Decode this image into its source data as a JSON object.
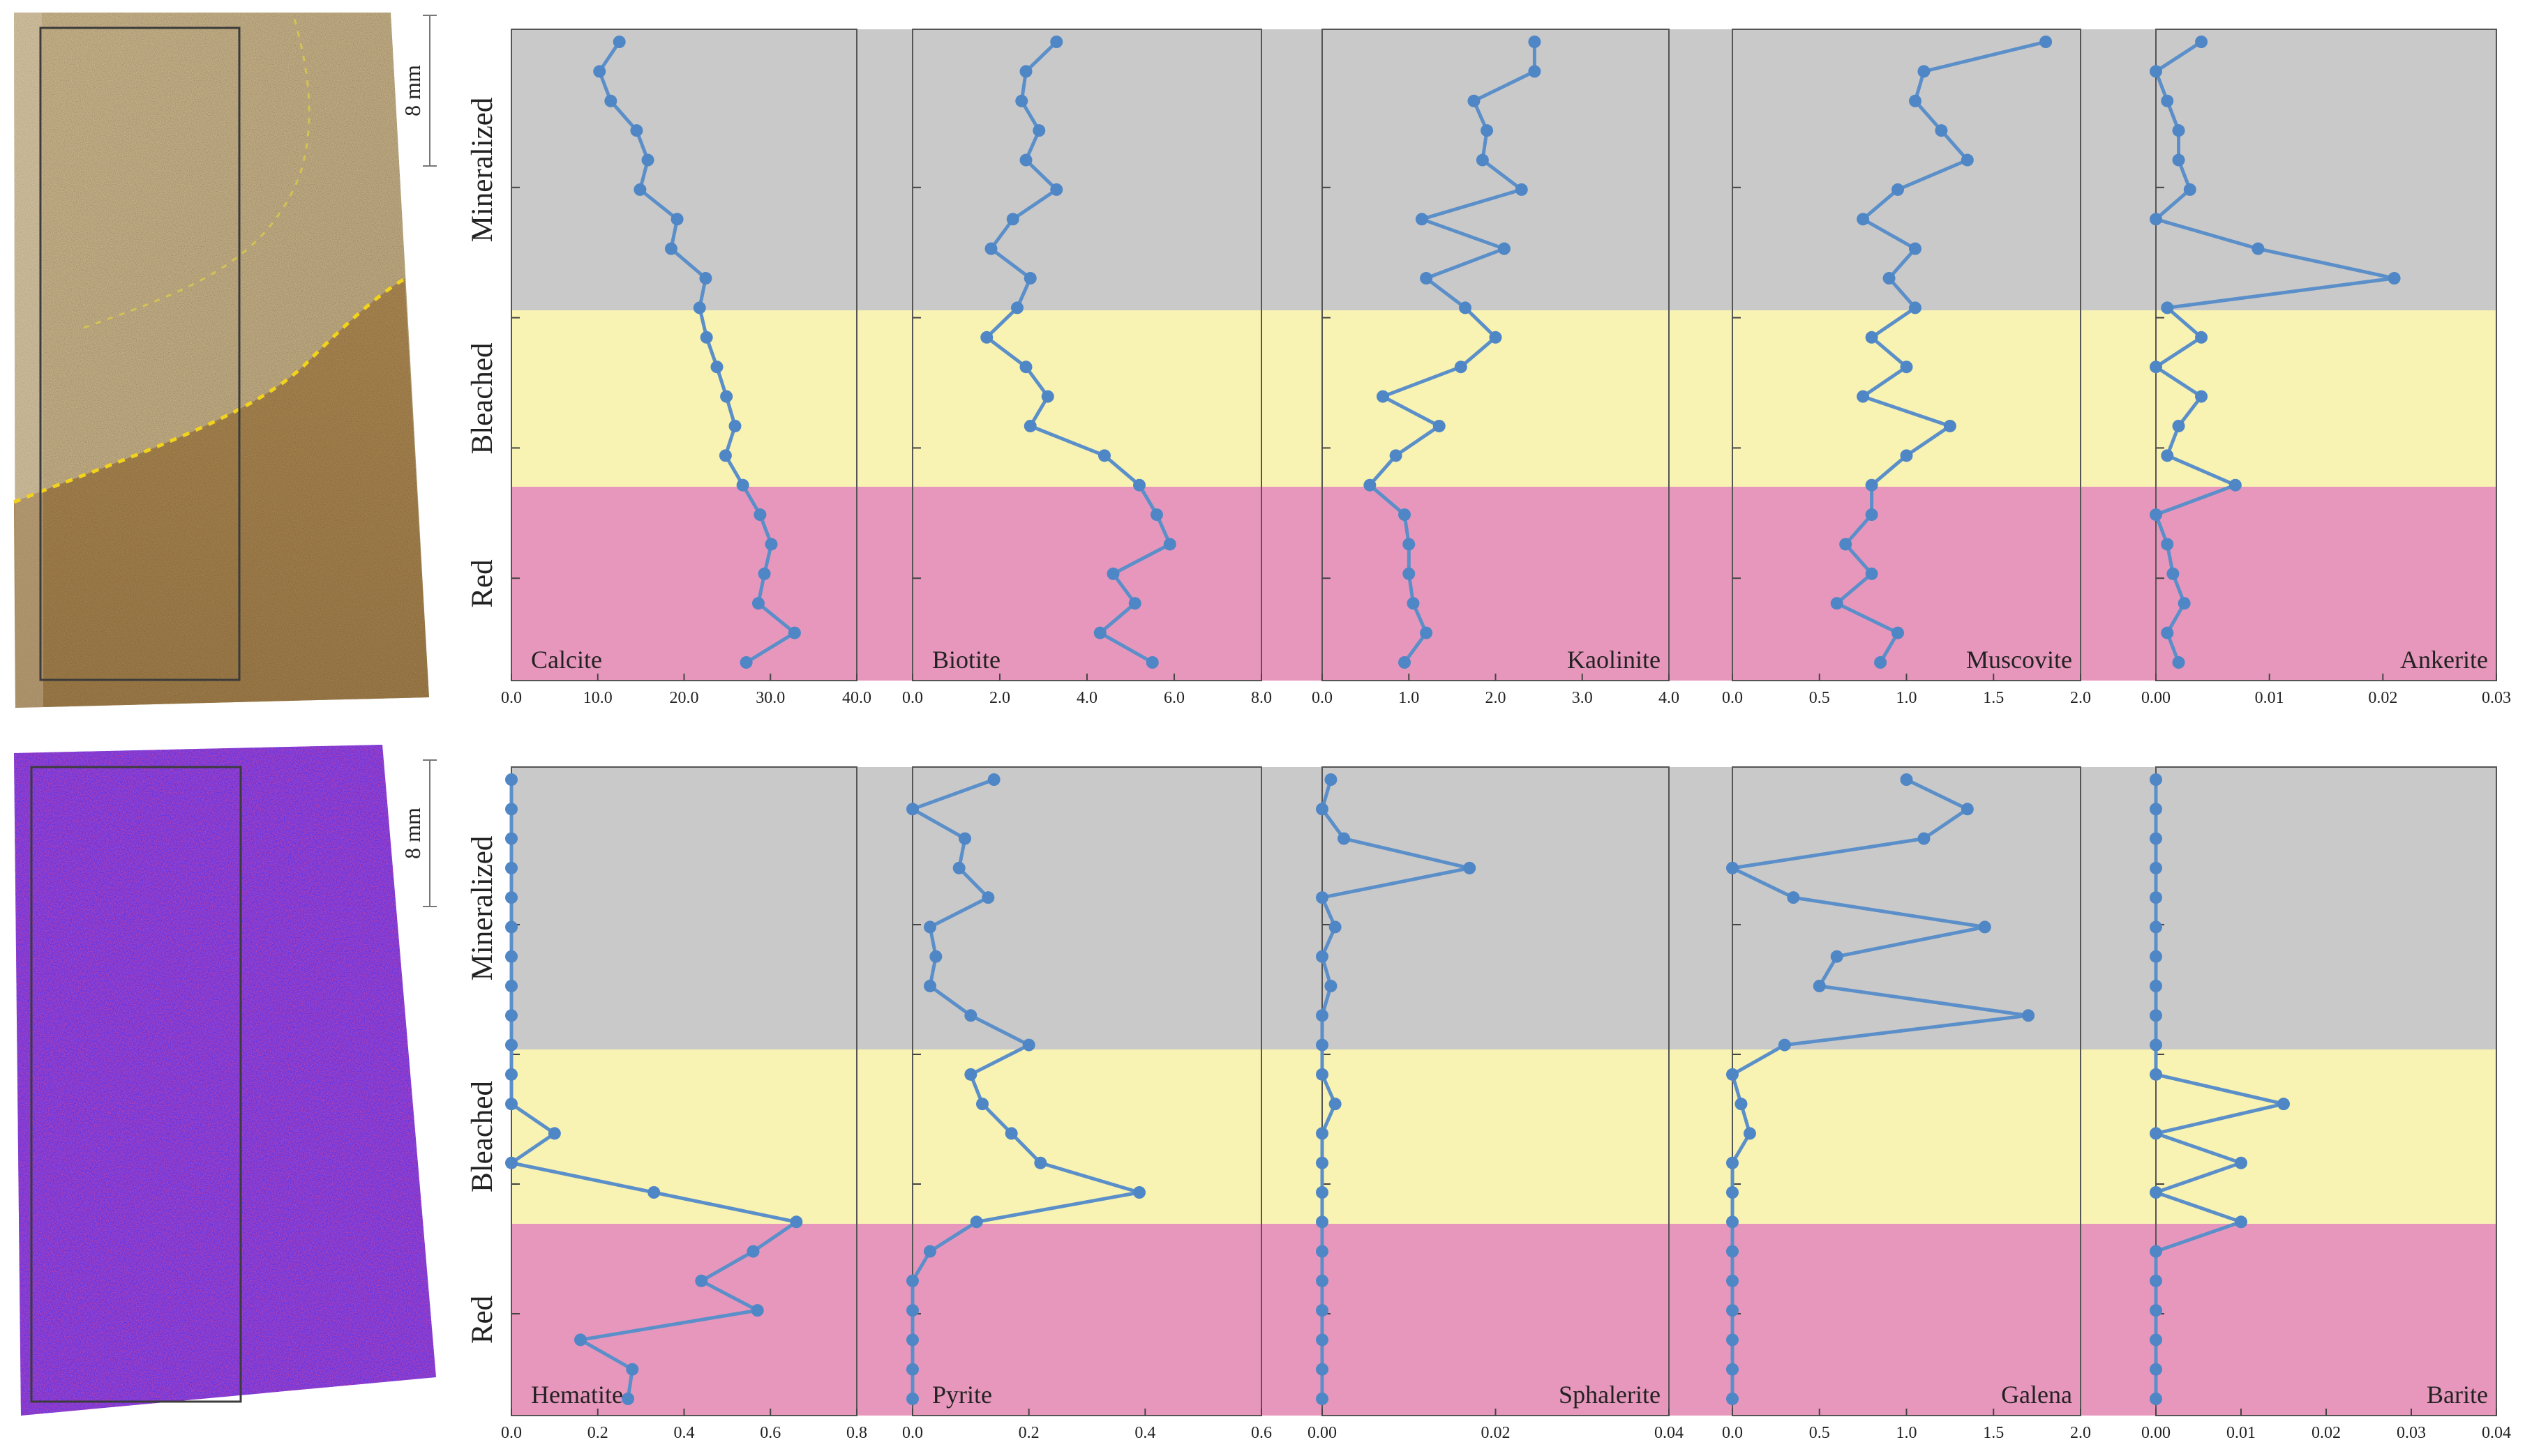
{
  "scale_bar": "8 mm",
  "zones": [
    {
      "label": "Mineralized",
      "color": "#c9c9c9"
    },
    {
      "label": "Bleached",
      "color": "#f8f3b3"
    },
    {
      "label": "Red",
      "color": "#e797bc"
    }
  ],
  "colors": {
    "series": "#5b8fc9",
    "marker": "#4f86c6"
  },
  "chart_data": [
    {
      "type": "line",
      "label": "Calcite",
      "row": 0,
      "xlim": [
        0,
        40
      ],
      "ticks": [
        "0.0",
        "10.0",
        "20.0",
        "30.0",
        "40.0"
      ],
      "depth": [
        0,
        1,
        2,
        3,
        4,
        5,
        6,
        7,
        8,
        9,
        10,
        11,
        12,
        13,
        14,
        15,
        16,
        17,
        18,
        19,
        20,
        21
      ],
      "values": [
        12.5,
        10.2,
        11.5,
        14.5,
        15.8,
        14.9,
        19.2,
        18.5,
        22.5,
        21.8,
        22.6,
        23.8,
        24.9,
        25.9,
        24.8,
        26.8,
        28.8,
        30.1,
        29.3,
        28.6,
        32.8,
        27.2
      ]
    },
    {
      "type": "line",
      "label": "Biotite",
      "row": 0,
      "xlim": [
        0,
        8
      ],
      "ticks": [
        "0.0",
        "2.0",
        "4.0",
        "6.0",
        "8.0"
      ],
      "depth": [
        0,
        1,
        2,
        3,
        4,
        5,
        6,
        7,
        8,
        9,
        10,
        11,
        12,
        13,
        14,
        15,
        16,
        17,
        18,
        19,
        20,
        21
      ],
      "values": [
        3.3,
        2.6,
        2.5,
        2.9,
        2.6,
        3.3,
        2.3,
        1.8,
        2.7,
        2.4,
        1.7,
        2.6,
        3.1,
        2.7,
        4.4,
        5.2,
        5.6,
        5.9,
        4.6,
        5.1,
        4.3,
        5.5
      ]
    },
    {
      "type": "line",
      "label": "Kaolinite",
      "row": 0,
      "xlim": [
        0,
        4
      ],
      "ticks": [
        "0.0",
        "1.0",
        "2.0",
        "3.0",
        "4.0"
      ],
      "depth": [
        0,
        1,
        2,
        3,
        4,
        5,
        6,
        7,
        8,
        9,
        10,
        11,
        12,
        13,
        14,
        15,
        16,
        17,
        18,
        19,
        20,
        21
      ],
      "values": [
        2.45,
        2.45,
        1.75,
        1.9,
        1.85,
        2.3,
        1.15,
        2.1,
        1.2,
        1.65,
        2.0,
        1.6,
        0.7,
        1.35,
        0.85,
        0.55,
        0.95,
        1.0,
        1.0,
        1.05,
        1.2,
        0.95
      ]
    },
    {
      "type": "line",
      "label": "Muscovite",
      "row": 0,
      "xlim": [
        0,
        2
      ],
      "ticks": [
        "0.0",
        "0.5",
        "1.0",
        "1.5",
        "2.0"
      ],
      "depth": [
        0,
        1,
        2,
        3,
        4,
        5,
        6,
        7,
        8,
        9,
        10,
        11,
        12,
        13,
        14,
        15,
        16,
        17,
        18,
        19,
        20,
        21
      ],
      "values": [
        1.8,
        1.1,
        1.05,
        1.2,
        1.35,
        0.95,
        0.75,
        1.05,
        0.9,
        1.05,
        0.8,
        1.0,
        0.75,
        1.25,
        1.0,
        0.8,
        0.8,
        0.65,
        0.8,
        0.6,
        0.95,
        0.85
      ]
    },
    {
      "type": "line",
      "label": "Ankerite",
      "row": 0,
      "xlim": [
        0,
        0.03
      ],
      "ticks": [
        "0.00",
        "0.01",
        "0.02",
        "0.03"
      ],
      "depth": [
        0,
        1,
        2,
        3,
        4,
        5,
        6,
        7,
        8,
        9,
        10,
        11,
        12,
        13,
        14,
        15,
        16,
        17,
        18,
        19,
        20,
        21
      ],
      "values": [
        0.004,
        0.0,
        0.001,
        0.002,
        0.002,
        0.003,
        0.0,
        0.009,
        0.021,
        0.001,
        0.004,
        0.0,
        0.004,
        0.002,
        0.001,
        0.007,
        0.0,
        0.001,
        0.0015,
        0.0025,
        0.001,
        0.002
      ]
    },
    {
      "type": "line",
      "label": "Hematite",
      "row": 1,
      "xlim": [
        0,
        0.8
      ],
      "ticks": [
        "0.0",
        "0.2",
        "0.4",
        "0.6",
        "0.8"
      ],
      "depth": [
        0,
        1,
        2,
        3,
        4,
        5,
        6,
        7,
        8,
        9,
        10,
        11,
        12,
        13,
        14,
        15,
        16,
        17,
        18,
        19,
        20,
        21
      ],
      "values": [
        0.0,
        0.0,
        0.0,
        0.0,
        0.0,
        0.0,
        0.0,
        0.0,
        0.0,
        0.0,
        0.0,
        0.0,
        0.1,
        0.0,
        0.33,
        0.66,
        0.56,
        0.44,
        0.57,
        0.16,
        0.28,
        0.27
      ]
    },
    {
      "type": "line",
      "label": "Pyrite",
      "row": 1,
      "xlim": [
        0,
        0.6
      ],
      "ticks": [
        "0.0",
        "0.2",
        "0.4",
        "0.6"
      ],
      "depth": [
        0,
        1,
        2,
        3,
        4,
        5,
        6,
        7,
        8,
        9,
        10,
        11,
        12,
        13,
        14,
        15,
        16,
        17,
        18,
        19,
        20,
        21
      ],
      "values": [
        0.14,
        0.0,
        0.09,
        0.08,
        0.13,
        0.03,
        0.04,
        0.03,
        0.1,
        0.2,
        0.1,
        0.12,
        0.17,
        0.22,
        0.39,
        0.11,
        0.03,
        0.0,
        0.0,
        0.0,
        0.0,
        0.0
      ]
    },
    {
      "type": "line",
      "label": "Sphalerite",
      "row": 1,
      "xlim": [
        0,
        0.04
      ],
      "ticks": [
        "0.00",
        "0.02",
        "0.04"
      ],
      "depth": [
        0,
        1,
        2,
        3,
        4,
        5,
        6,
        7,
        8,
        9,
        10,
        11,
        12,
        13,
        14,
        15,
        16,
        17,
        18,
        19,
        20,
        21
      ],
      "values": [
        0.001,
        0.0,
        0.0025,
        0.017,
        0.0,
        0.0015,
        0.0,
        0.001,
        0.0,
        0.0,
        0.0,
        0.0015,
        0.0,
        0.0,
        0.0,
        0.0,
        0.0,
        0.0,
        0.0,
        0.0,
        0.0,
        0.0
      ]
    },
    {
      "type": "line",
      "label": "Galena",
      "row": 1,
      "xlim": [
        0,
        2
      ],
      "ticks": [
        "0.0",
        "0.5",
        "1.0",
        "1.5",
        "2.0"
      ],
      "depth": [
        0,
        1,
        2,
        3,
        4,
        5,
        6,
        7,
        8,
        9,
        10,
        11,
        12,
        13,
        14,
        15,
        16,
        17,
        18,
        19,
        20,
        21
      ],
      "values": [
        1.0,
        1.35,
        1.1,
        0.0,
        0.35,
        1.45,
        0.6,
        0.5,
        1.7,
        0.3,
        0.0,
        0.05,
        0.1,
        0.0,
        0.0,
        0.0,
        0.0,
        0.0,
        0.0,
        0.0,
        0.0,
        0.0
      ]
    },
    {
      "type": "line",
      "label": "Barite",
      "row": 1,
      "xlim": [
        0,
        0.04
      ],
      "ticks": [
        "0.00",
        "0.01",
        "0.02",
        "0.03",
        "0.04"
      ],
      "depth": [
        0,
        1,
        2,
        3,
        4,
        5,
        6,
        7,
        8,
        9,
        10,
        11,
        12,
        13,
        14,
        15,
        16,
        17,
        18,
        19,
        20,
        21
      ],
      "values": [
        0,
        0,
        0,
        0,
        0,
        0,
        0,
        0,
        0,
        0,
        0,
        0.015,
        0,
        0.01,
        0,
        0.01,
        0,
        0,
        0,
        0,
        0,
        0
      ]
    }
  ]
}
